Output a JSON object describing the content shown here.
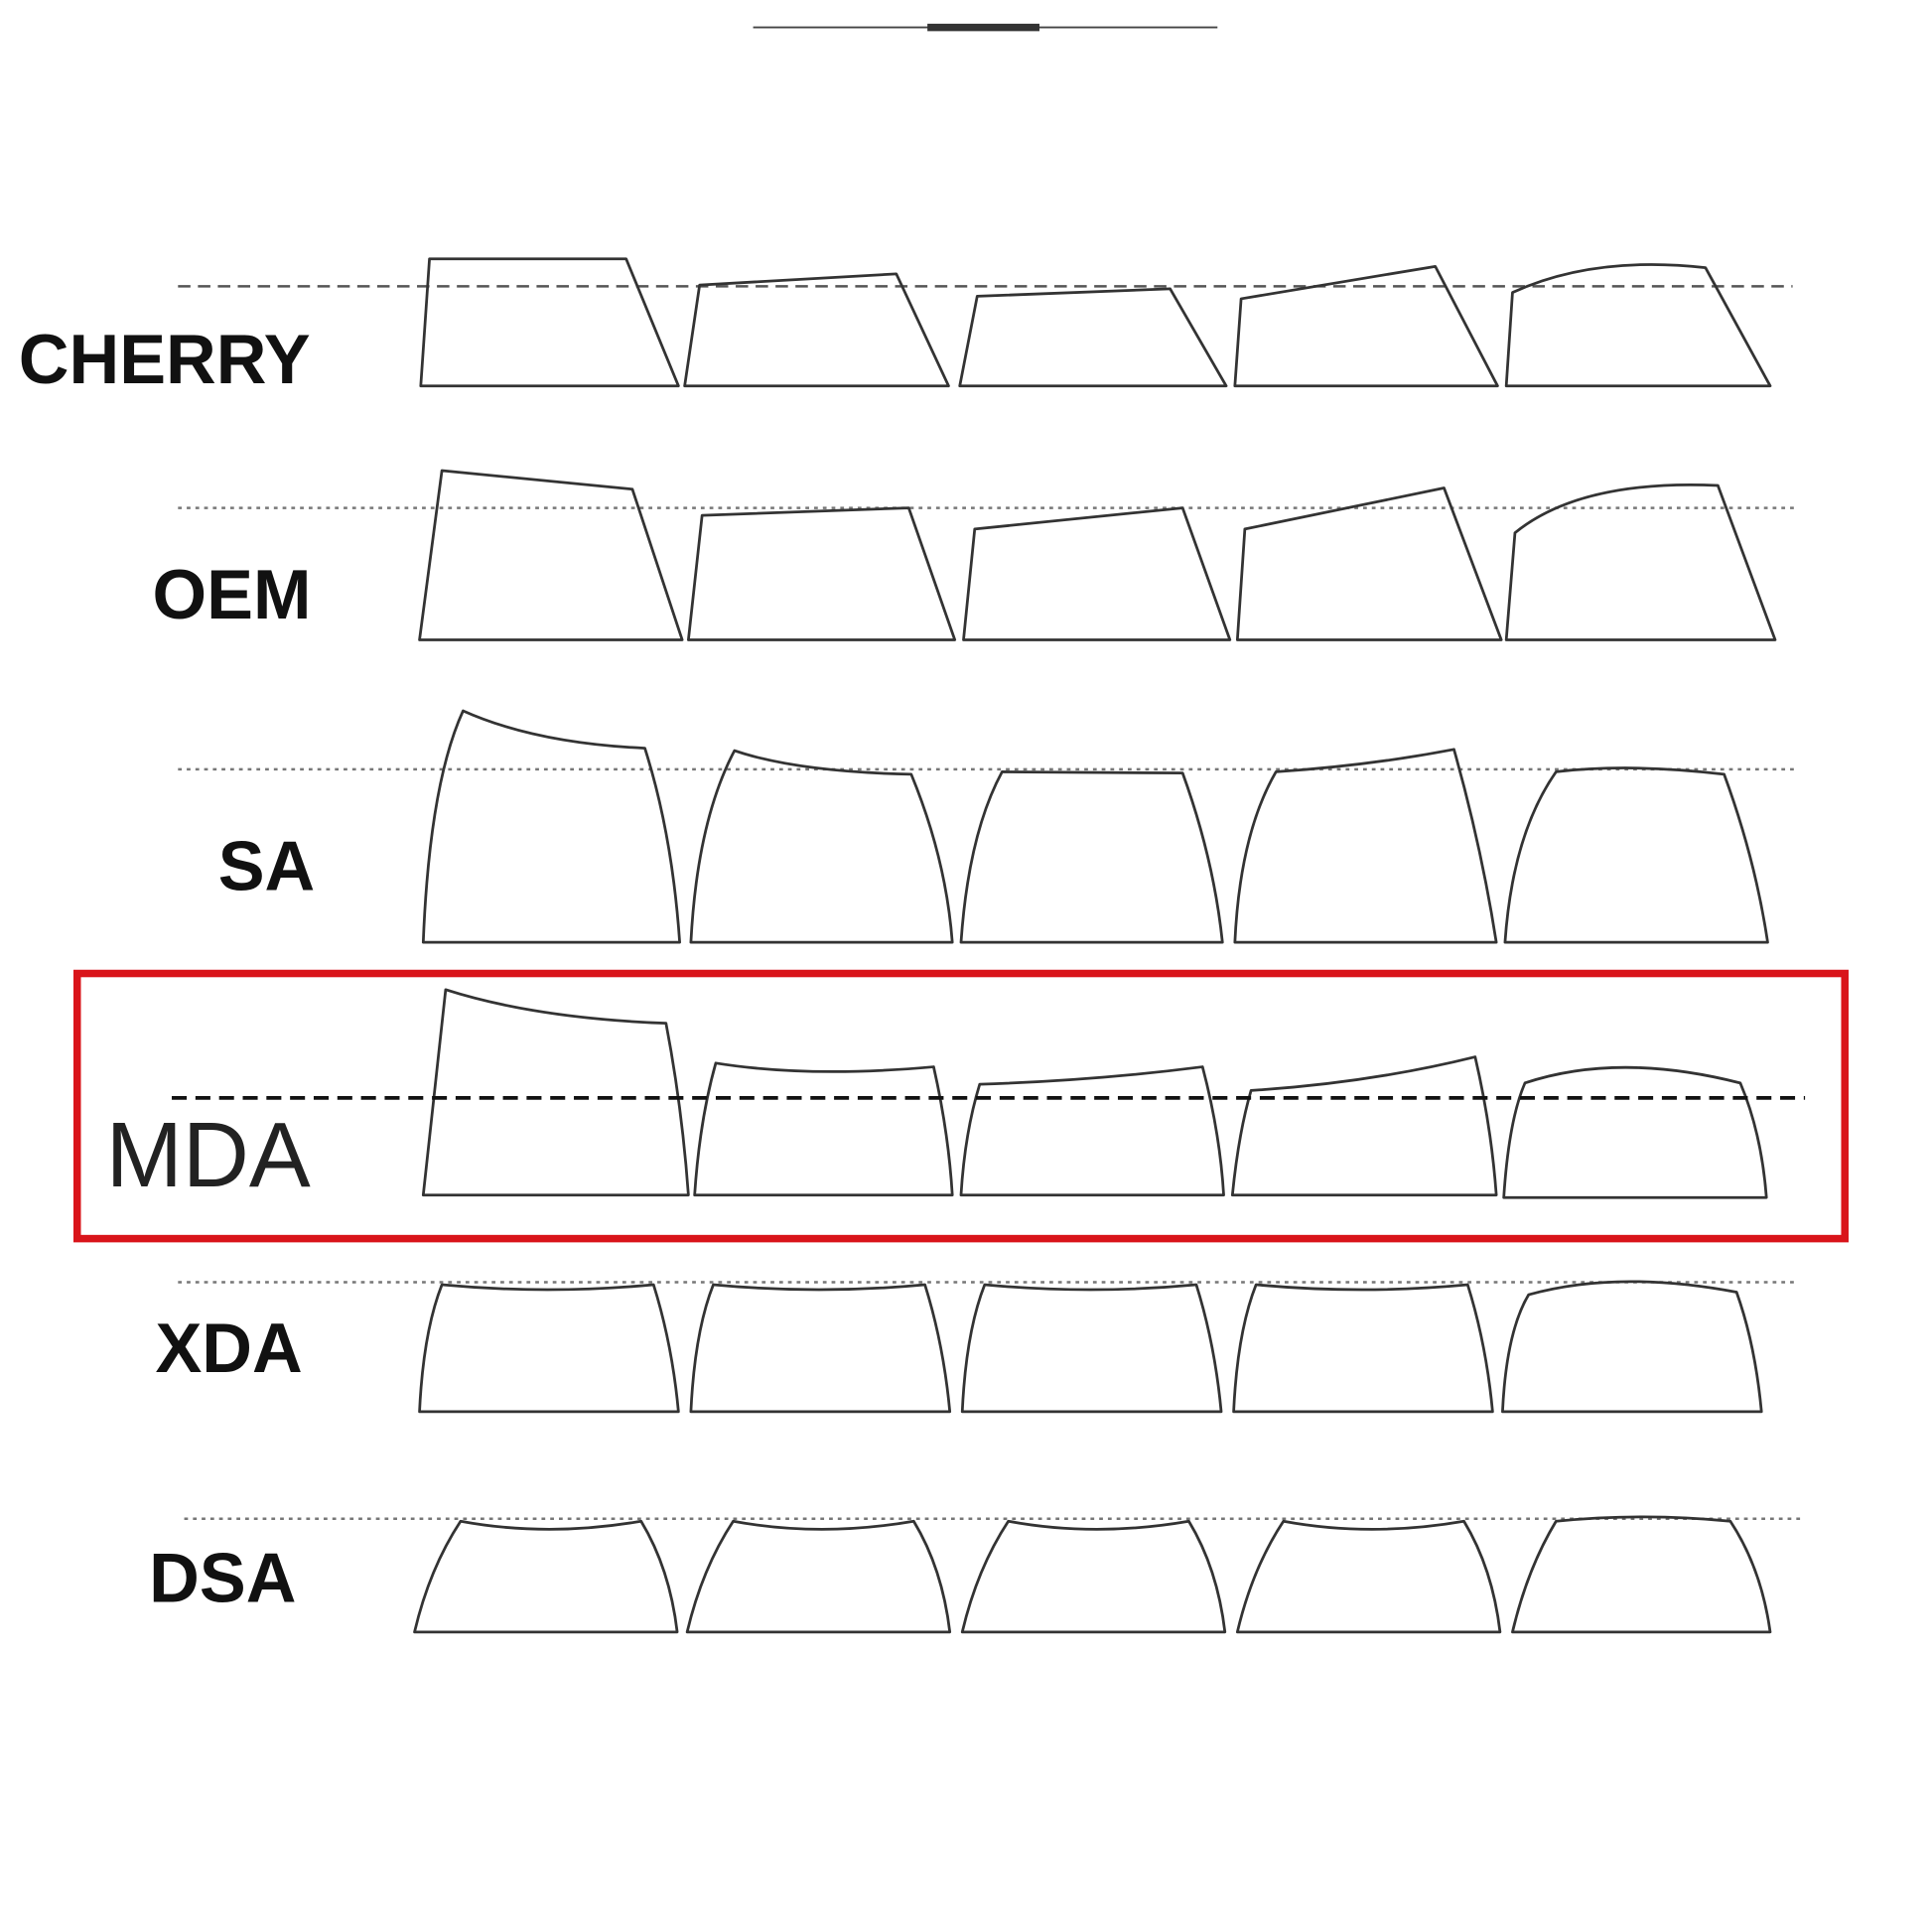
{
  "profiles": {
    "cherry": "CHERRY",
    "oem": "OEM",
    "sa": "SA",
    "mda": "MDA",
    "xda": "XDA",
    "dsa": "DSA"
  },
  "highlighted_profile": "MDA",
  "highlight_color": "#d9141a",
  "keys_per_row": 5
}
